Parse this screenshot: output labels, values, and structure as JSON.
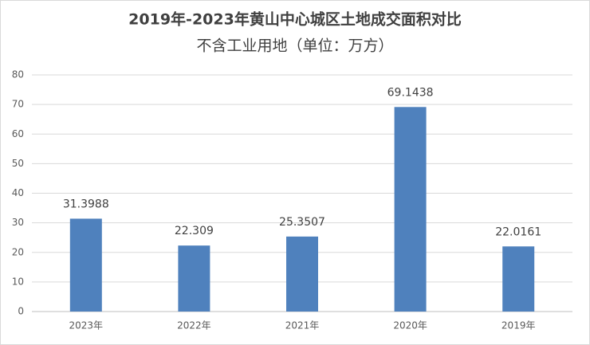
{
  "chart_data": {
    "type": "bar",
    "title": "2019年-2023年黄山中心城区土地成交面积对比",
    "subtitle": "不含工业用地（单位：万方）",
    "categories": [
      "2023年",
      "2022年",
      "2021年",
      "2020年",
      "2019年"
    ],
    "values": [
      31.3988,
      22.309,
      25.3507,
      69.1438,
      22.0161
    ],
    "color": "#4f81bd",
    "ylim": [
      0,
      80
    ],
    "yticks": [
      0,
      10,
      20,
      30,
      40,
      50,
      60,
      70,
      80
    ],
    "grid": true
  }
}
